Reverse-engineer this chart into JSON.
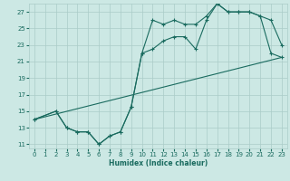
{
  "xlabel": "Humidex (Indice chaleur)",
  "xlim": [
    -0.5,
    23.5
  ],
  "ylim": [
    10.5,
    28.0
  ],
  "xticks": [
    0,
    1,
    2,
    3,
    4,
    5,
    6,
    7,
    8,
    9,
    10,
    11,
    12,
    13,
    14,
    15,
    16,
    17,
    18,
    19,
    20,
    21,
    22,
    23
  ],
  "yticks": [
    11,
    13,
    15,
    17,
    19,
    21,
    23,
    25,
    27
  ],
  "bg_color": "#cce8e4",
  "grid_color": "#aaccc8",
  "line_color": "#1a6b5f",
  "line1_x": [
    0,
    2,
    3,
    4,
    5,
    6,
    7,
    8,
    9,
    10,
    11,
    12,
    13,
    14,
    15,
    16,
    17,
    18,
    19,
    20,
    21,
    22,
    23
  ],
  "line1_y": [
    14.0,
    15.0,
    13.0,
    12.5,
    12.5,
    11.0,
    12.0,
    12.5,
    15.5,
    22.0,
    26.0,
    25.5,
    26.0,
    25.5,
    25.5,
    26.5,
    28.0,
    27.0,
    27.0,
    27.0,
    26.5,
    26.0,
    23.0
  ],
  "line2_x": [
    0,
    2,
    3,
    4,
    5,
    6,
    7,
    8,
    9,
    10,
    11,
    12,
    13,
    14,
    15,
    16,
    17,
    18,
    19,
    20,
    21,
    22,
    23
  ],
  "line2_y": [
    14.0,
    15.0,
    13.0,
    12.5,
    12.5,
    11.0,
    12.0,
    12.5,
    15.5,
    22.0,
    22.5,
    23.5,
    24.0,
    24.0,
    22.5,
    26.0,
    28.0,
    27.0,
    27.0,
    27.0,
    26.5,
    22.0,
    21.5
  ],
  "line3_x": [
    0,
    23
  ],
  "line3_y": [
    14.0,
    21.5
  ]
}
